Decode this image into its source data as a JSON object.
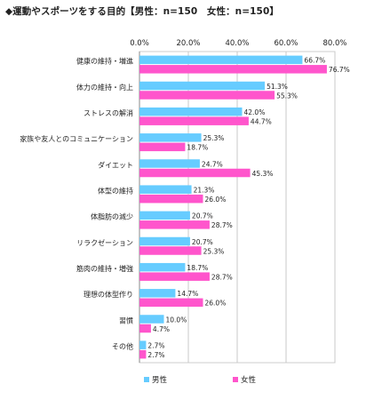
{
  "chart_data": {
    "type": "bar",
    "orientation": "horizontal",
    "title": "◆運動やスポーツをする目的【男性：n=150　女性：n=150】",
    "categories": [
      "健康の維持・増進",
      "体力の維持・向上",
      "ストレスの解消",
      "家族や友人とのコミュニケーション",
      "ダイエット",
      "体型の維持",
      "体脂肪の減少",
      "リラクゼーション",
      "筋肉の維持・増強",
      "理想の体型作り",
      "習慣",
      "その他"
    ],
    "series": [
      {
        "name": "男性",
        "color": "#66ccff",
        "values": [
          66.7,
          51.3,
          42.0,
          25.3,
          24.7,
          21.3,
          20.7,
          20.7,
          18.7,
          14.7,
          10.0,
          2.7
        ],
        "labels": [
          "66.7%",
          "51.3%",
          "42.0%",
          "25.3%",
          "24.7%",
          "21.3%",
          "20.7%",
          "20.7%",
          "18.7%",
          "14.7%",
          "10.0%",
          "2.7%"
        ]
      },
      {
        "name": "女性",
        "color": "#ff55cc",
        "values": [
          76.7,
          55.3,
          44.7,
          18.7,
          45.3,
          26.0,
          28.7,
          25.3,
          28.7,
          26.0,
          4.7,
          2.7
        ],
        "labels": [
          "76.7%",
          "55.3%",
          "44.7%",
          "18.7%",
          "45.3%",
          "26.0%",
          "28.7%",
          "25.3%",
          "28.7%",
          "26.0%",
          "4.7%",
          "2.7%"
        ]
      }
    ],
    "xlim": [
      0,
      80
    ],
    "xticks": [
      "0.0%",
      "20.0%",
      "40.0%",
      "60.0%",
      "80.0%"
    ],
    "grid": true,
    "legend": "bottom"
  }
}
